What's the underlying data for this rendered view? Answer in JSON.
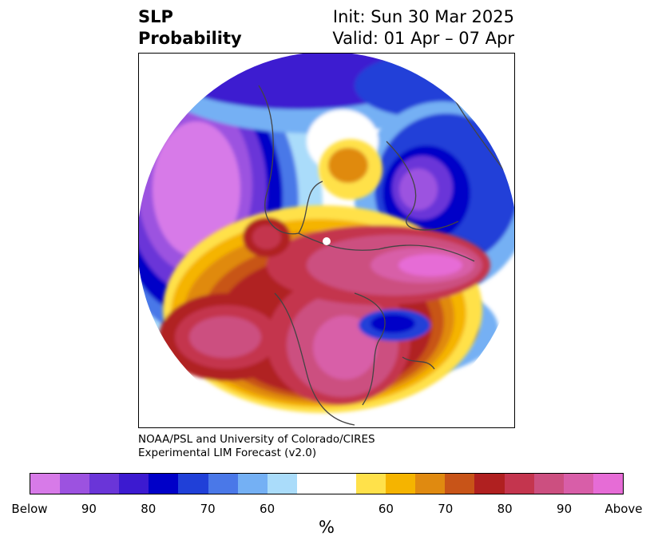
{
  "title": {
    "left_line1": "SLP",
    "left_line2": "Probability",
    "right_line1": "Init: Sun 30 Mar 2025",
    "right_line2": "Valid: 01 Apr – 07 Apr"
  },
  "credit": {
    "line1": "NOAA/PSL and University of Colorado/CIRES",
    "line2": "Experimental LIM Forecast (v2.0)"
  },
  "colorbar": {
    "unit": "%",
    "colors": [
      "#d77ae8",
      "#9c52e0",
      "#6a35d8",
      "#3c1ad0",
      "#0000c8",
      "#2040d8",
      "#4a78e8",
      "#74b0f4",
      "#aadcfa",
      "#ffffff",
      "#ffffff",
      "#ffe14a",
      "#f5b400",
      "#e08a10",
      "#c85418",
      "#b02020",
      "#c4354e",
      "#cc4f80",
      "#d85ea8",
      "#e66cd6"
    ],
    "ticks": [
      {
        "label": "Below",
        "frac": 0.0
      },
      {
        "label": "90",
        "frac": 0.1
      },
      {
        "label": "80",
        "frac": 0.2
      },
      {
        "label": "70",
        "frac": 0.3
      },
      {
        "label": "60",
        "frac": 0.4
      },
      {
        "label": "60",
        "frac": 0.6
      },
      {
        "label": "70",
        "frac": 0.7
      },
      {
        "label": "80",
        "frac": 0.8
      },
      {
        "label": "90",
        "frac": 0.9
      },
      {
        "label": "Above",
        "frac": 1.0
      }
    ]
  }
}
